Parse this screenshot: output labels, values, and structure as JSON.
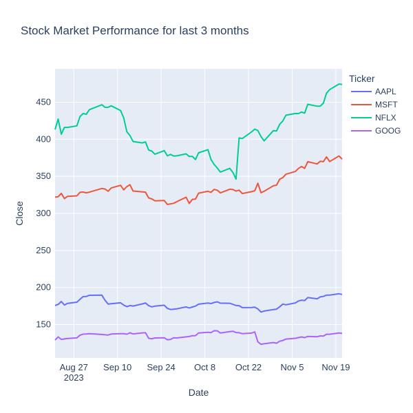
{
  "chart_data": {
    "type": "line",
    "title": "Stock Market Performance for last 3 months",
    "xlabel": "Date",
    "ylabel": "Close",
    "legend_title": "Ticker",
    "legend_position": "top-right",
    "grid": true,
    "background": "#e5ecf6",
    "xlim": [
      "2023-08-21",
      "2023-11-21"
    ],
    "ylim": [
      105,
      495
    ],
    "x_ticks": [
      {
        "date": "2023-08-27",
        "label": "Aug 27",
        "sublabel": "2023"
      },
      {
        "date": "2023-09-10",
        "label": "Sep 10",
        "sublabel": ""
      },
      {
        "date": "2023-09-24",
        "label": "Sep 24",
        "sublabel": ""
      },
      {
        "date": "2023-10-08",
        "label": "Oct 8",
        "sublabel": ""
      },
      {
        "date": "2023-10-22",
        "label": "Oct 22",
        "sublabel": ""
      },
      {
        "date": "2023-11-05",
        "label": "Nov 5",
        "sublabel": ""
      },
      {
        "date": "2023-11-19",
        "label": "Nov 19",
        "sublabel": ""
      }
    ],
    "y_ticks": [
      150,
      200,
      250,
      300,
      350,
      400,
      450
    ],
    "x": [
      "2023-08-21",
      "2023-08-22",
      "2023-08-23",
      "2023-08-24",
      "2023-08-25",
      "2023-08-28",
      "2023-08-29",
      "2023-08-30",
      "2023-08-31",
      "2023-09-01",
      "2023-09-05",
      "2023-09-06",
      "2023-09-07",
      "2023-09-08",
      "2023-09-11",
      "2023-09-12",
      "2023-09-13",
      "2023-09-14",
      "2023-09-15",
      "2023-09-18",
      "2023-09-19",
      "2023-09-20",
      "2023-09-21",
      "2023-09-22",
      "2023-09-25",
      "2023-09-26",
      "2023-09-27",
      "2023-09-28",
      "2023-09-29",
      "2023-10-02",
      "2023-10-03",
      "2023-10-04",
      "2023-10-05",
      "2023-10-06",
      "2023-10-09",
      "2023-10-10",
      "2023-10-11",
      "2023-10-12",
      "2023-10-13",
      "2023-10-16",
      "2023-10-17",
      "2023-10-18",
      "2023-10-19",
      "2023-10-20",
      "2023-10-23",
      "2023-10-24",
      "2023-10-25",
      "2023-10-26",
      "2023-10-27",
      "2023-10-30",
      "2023-10-31",
      "2023-11-01",
      "2023-11-02",
      "2023-11-03",
      "2023-11-06",
      "2023-11-07",
      "2023-11-08",
      "2023-11-09",
      "2023-11-10",
      "2023-11-13",
      "2023-11-14",
      "2023-11-15",
      "2023-11-16",
      "2023-11-17",
      "2023-11-20",
      "2023-11-21"
    ],
    "series": [
      {
        "name": "AAPL",
        "color": "#636efa",
        "values": [
          175.8,
          177.2,
          181.1,
          176.4,
          178.6,
          180.2,
          184.1,
          187.7,
          187.9,
          189.5,
          189.7,
          182.9,
          177.6,
          178.2,
          179.4,
          176.3,
          174.2,
          175.7,
          175.0,
          177.9,
          179.1,
          175.5,
          173.9,
          174.8,
          176.1,
          171.9,
          170.4,
          170.7,
          171.2,
          173.8,
          172.4,
          173.7,
          174.9,
          177.5,
          178.99,
          178.4,
          179.8,
          180.7,
          178.9,
          178.7,
          177.2,
          175.8,
          175.5,
          172.9,
          173.0,
          173.4,
          171.1,
          166.9,
          168.2,
          170.3,
          170.8,
          173.97,
          177.6,
          176.7,
          179.2,
          181.8,
          182.9,
          182.4,
          186.4,
          184.8,
          187.4,
          188.0,
          189.7,
          189.7,
          191.5,
          190.6
        ]
      },
      {
        "name": "MSFT",
        "color": "#ef553b",
        "values": [
          321.9,
          322.5,
          327.0,
          319.97,
          322.98,
          323.7,
          328.4,
          328.8,
          327.8,
          328.7,
          333.6,
          332.9,
          329.9,
          334.3,
          337.9,
          331.8,
          336.1,
          338.7,
          330.2,
          329.1,
          328.7,
          320.8,
          319.5,
          317.0,
          317.5,
          312.1,
          312.8,
          313.6,
          315.8,
          321.8,
          313.4,
          318.96,
          319.36,
          327.3,
          329.8,
          328.4,
          332.4,
          331.2,
          327.7,
          332.6,
          332.1,
          330.1,
          331.3,
          326.7,
          329.3,
          330.5,
          340.7,
          327.9,
          329.8,
          337.3,
          338.1,
          346.1,
          348.3,
          352.8,
          356.5,
          360.5,
          363.2,
          360.7,
          369.7,
          366.7,
          370.3,
          369.7,
          376.2,
          369.9,
          377.4,
          373.1
        ]
      },
      {
        "name": "NFLX",
        "color": "#00cc96",
        "values": [
          413.2,
          427.2,
          406.8,
          416.0,
          416.0,
          418.1,
          430.7,
          434.7,
          433.7,
          439.9,
          446.5,
          443.1,
          443.1,
          445.1,
          438.7,
          429.0,
          410.0,
          405.0,
          396.9,
          395.1,
          396.4,
          385.4,
          384.0,
          379.8,
          384.7,
          377.6,
          379.6,
          377.4,
          377.6,
          380.3,
          376.8,
          376.9,
          372.6,
          381.7,
          385.95,
          372.6,
          365.9,
          361.2,
          355.7,
          360.7,
          355.2,
          346.2,
          401.8,
          400.96,
          410.0,
          413.7,
          411.7,
          403.5,
          397.9,
          411.7,
          411.2,
          420.2,
          424.7,
          432.4,
          434.7,
          434.6,
          436.7,
          435.2,
          447.2,
          444.6,
          444.8,
          448.7,
          462.1,
          467.0,
          474.5,
          474.0
        ]
      },
      {
        "name": "GOOG",
        "color": "#ab63fa",
        "values": [
          129.1,
          133.4,
          130.0,
          130.6,
          131.2,
          132.0,
          135.7,
          137.1,
          137.3,
          137.8,
          136.7,
          136.2,
          135.9,
          137.2,
          137.7,
          137.7,
          137.0,
          138.9,
          137.4,
          138.8,
          139.0,
          131.5,
          130.9,
          131.9,
          132.2,
          129.5,
          130.0,
          132.2,
          131.9,
          133.4,
          133.9,
          135.0,
          135.1,
          138.7,
          139.5,
          139.2,
          141.7,
          141.6,
          138.6,
          140.5,
          140.99,
          139.3,
          138.98,
          137.8,
          138.5,
          140.1,
          126.7,
          123.4,
          124.1,
          125.8,
          124.9,
          127.6,
          128.6,
          130.4,
          131.5,
          132.4,
          133.3,
          132.4,
          134.1,
          133.6,
          134.7,
          134.5,
          136.9,
          136.9,
          138.6,
          138.1
        ]
      }
    ]
  }
}
